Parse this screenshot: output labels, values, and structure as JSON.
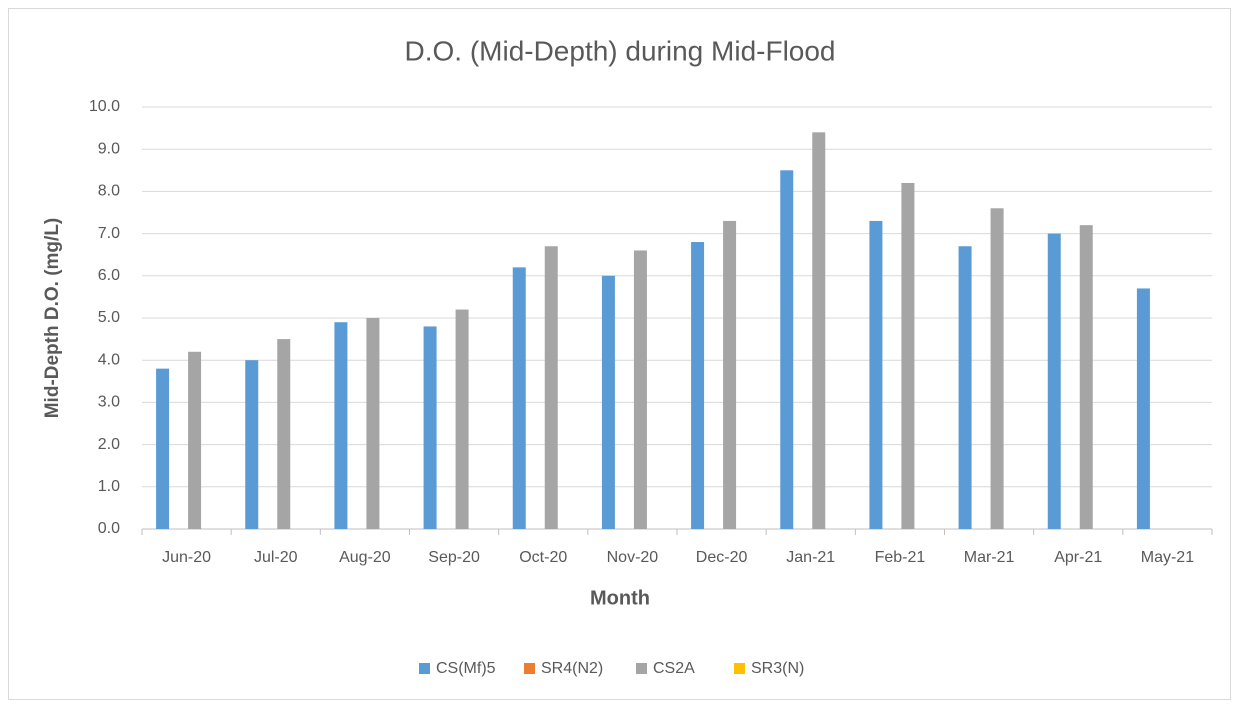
{
  "chart_data": {
    "type": "bar",
    "title": "D.O. (Mid-Depth) during Mid-Flood",
    "x_label": "Month",
    "y_label": "Mid-Depth D.O. (mg/L)",
    "categories": [
      "Jun-20",
      "Jul-20",
      "Aug-20",
      "Sep-20",
      "Oct-20",
      "Nov-20",
      "Dec-20",
      "Jan-21",
      "Feb-21",
      "Mar-21",
      "Apr-21",
      "May-21"
    ],
    "series": [
      {
        "name": "CS(Mf)5",
        "color": "#5b9bd5",
        "values": [
          3.8,
          4.0,
          4.9,
          4.8,
          6.2,
          6.0,
          6.8,
          8.5,
          7.3,
          6.7,
          7.0,
          5.7
        ]
      },
      {
        "name": "SR4(N2)",
        "color": "#ed7d31",
        "values": [
          null,
          null,
          null,
          null,
          null,
          null,
          null,
          null,
          null,
          null,
          null,
          null
        ]
      },
      {
        "name": "CS2A",
        "color": "#a5a5a5",
        "values": [
          4.2,
          4.5,
          5.0,
          5.2,
          6.7,
          6.6,
          7.3,
          9.4,
          8.2,
          7.6,
          7.2,
          null
        ]
      },
      {
        "name": "SR3(N)",
        "color": "#ffc000",
        "values": [
          null,
          null,
          null,
          null,
          null,
          null,
          null,
          null,
          null,
          null,
          null,
          null
        ]
      }
    ],
    "ylim": [
      0,
      10
    ],
    "yticks": [
      {
        "value": 0,
        "label": "0.0"
      },
      {
        "value": 1,
        "label": "1.0"
      },
      {
        "value": 2,
        "label": "2.0"
      },
      {
        "value": 3,
        "label": "3.0"
      },
      {
        "value": 4,
        "label": "4.0"
      },
      {
        "value": 5,
        "label": "5.0"
      },
      {
        "value": 6,
        "label": "6.0"
      },
      {
        "value": 7,
        "label": "7.0"
      },
      {
        "value": 8,
        "label": "8.0"
      },
      {
        "value": 9,
        "label": "9.0"
      },
      {
        "value": 10,
        "label": "10.0"
      }
    ],
    "grid": true,
    "legend": "bottom"
  }
}
